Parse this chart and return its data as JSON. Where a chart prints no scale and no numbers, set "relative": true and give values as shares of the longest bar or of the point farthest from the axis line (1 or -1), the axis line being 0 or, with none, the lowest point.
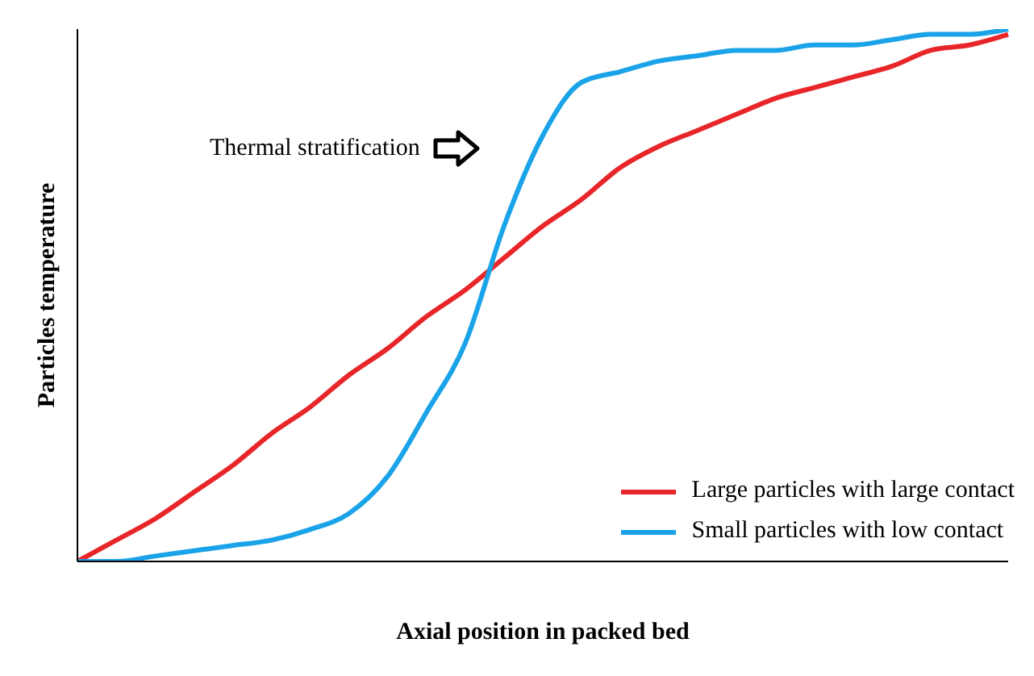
{
  "chart_data": {
    "type": "line",
    "relative": true,
    "xlabel": "Axial position in packed bed",
    "ylabel": "Particles temperature",
    "categories": [
      null,
      null,
      null,
      null,
      null,
      null,
      null,
      null,
      null,
      null,
      null,
      null,
      null,
      null,
      null,
      null,
      null,
      null,
      null,
      null,
      null,
      null,
      null,
      null,
      null
    ],
    "series": [
      {
        "name": "Large particles with large contact",
        "color": "#e8262a",
        "values": [
          0,
          0.04,
          0.08,
          0.13,
          0.18,
          0.24,
          0.29,
          0.35,
          0.4,
          0.46,
          0.51,
          0.57,
          0.63,
          0.68,
          0.74,
          0.78,
          0.81,
          0.84,
          0.87,
          0.89,
          0.91,
          0.93,
          0.96,
          0.97,
          0.99
        ]
      },
      {
        "name": "Small particles with low contact",
        "color": "#1aa3e8",
        "values": [
          0,
          0,
          0.01,
          0.02,
          0.03,
          0.04,
          0.06,
          0.09,
          0.16,
          0.28,
          0.41,
          0.63,
          0.8,
          0.9,
          0.92,
          0.94,
          0.95,
          0.96,
          0.96,
          0.97,
          0.97,
          0.98,
          0.99,
          0.99,
          1
        ]
      }
    ],
    "annotations": [
      "Thermal stratification"
    ],
    "legend": "bottom right",
    "marker": "none",
    "line_style": "solid",
    "grid": false
  }
}
